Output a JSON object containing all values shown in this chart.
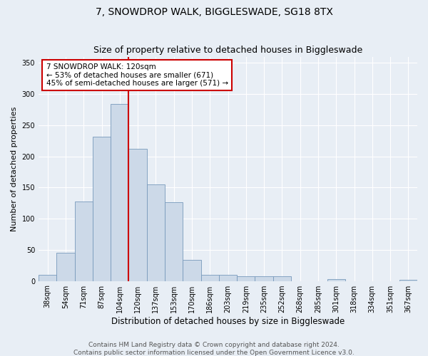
{
  "title": "7, SNOWDROP WALK, BIGGLESWADE, SG18 8TX",
  "subtitle": "Size of property relative to detached houses in Biggleswade",
  "xlabel": "Distribution of detached houses by size in Biggleswade",
  "ylabel": "Number of detached properties",
  "categories": [
    "38sqm",
    "54sqm",
    "71sqm",
    "87sqm",
    "104sqm",
    "120sqm",
    "137sqm",
    "153sqm",
    "170sqm",
    "186sqm",
    "203sqm",
    "219sqm",
    "235sqm",
    "252sqm",
    "268sqm",
    "285sqm",
    "301sqm",
    "318sqm",
    "334sqm",
    "351sqm",
    "367sqm"
  ],
  "values": [
    10,
    45,
    127,
    231,
    284,
    212,
    155,
    126,
    34,
    10,
    10,
    8,
    8,
    7,
    0,
    0,
    3,
    0,
    0,
    0,
    2
  ],
  "bar_color": "#ccd9e8",
  "bar_edge_color": "#7799bb",
  "vline_color": "#cc0000",
  "annotation_text": "7 SNOWDROP WALK: 120sqm\n← 53% of detached houses are smaller (671)\n45% of semi-detached houses are larger (571) →",
  "annotation_box_color": "#ffffff",
  "annotation_box_edge_color": "#cc0000",
  "ylim": [
    0,
    360
  ],
  "yticks": [
    0,
    50,
    100,
    150,
    200,
    250,
    300,
    350
  ],
  "footer1": "Contains HM Land Registry data © Crown copyright and database right 2024.",
  "footer2": "Contains public sector information licensed under the Open Government Licence v3.0.",
  "background_color": "#e8eef5",
  "plot_background_color": "#e8eef5",
  "title_fontsize": 10,
  "tick_fontsize": 7,
  "ylabel_fontsize": 8,
  "xlabel_fontsize": 8.5,
  "annotation_fontsize": 7.5,
  "footer_fontsize": 6.5,
  "vline_index": 5
}
